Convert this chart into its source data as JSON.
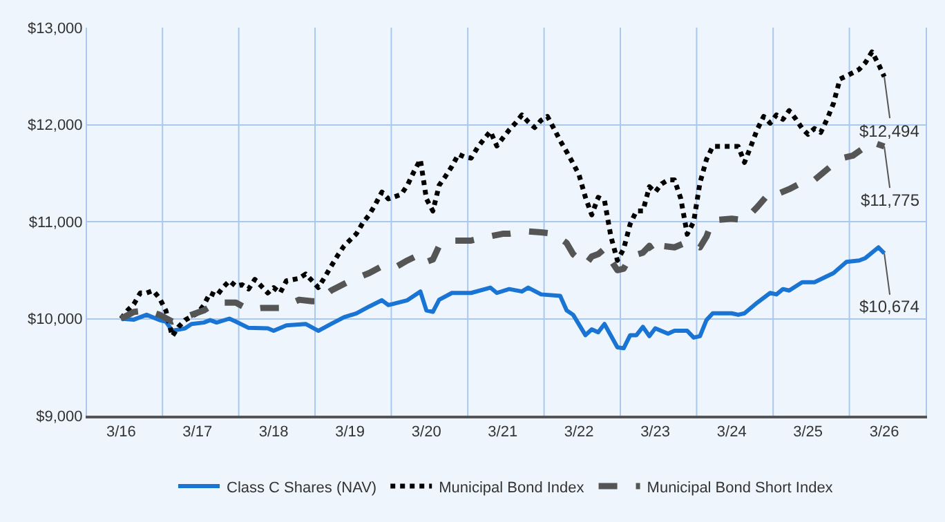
{
  "chart_data": {
    "type": "line",
    "xlim": [
      "2015-09-20",
      "2026-09-15"
    ],
    "ylim": [
      9000,
      13000
    ],
    "xticks": [
      {
        "value": "2016-03",
        "label": "3/16"
      },
      {
        "value": "2017-03",
        "label": "3/17"
      },
      {
        "value": "2018-03",
        "label": "3/18"
      },
      {
        "value": "2019-03",
        "label": "3/19"
      },
      {
        "value": "2020-03",
        "label": "3/20"
      },
      {
        "value": "2021-03",
        "label": "3/21"
      },
      {
        "value": "2022-03",
        "label": "3/22"
      },
      {
        "value": "2023-03",
        "label": "3/23"
      },
      {
        "value": "2024-03",
        "label": "3/24"
      },
      {
        "value": "2025-03",
        "label": "3/25"
      },
      {
        "value": "2026-03",
        "label": "3/26"
      },
      {
        "value": "2016-09-15",
        "label": null
      },
      {
        "value": "2017-09-15",
        "label": null
      },
      {
        "value": "2018-09-15",
        "label": null
      },
      {
        "value": "2019-09-15",
        "label": null
      },
      {
        "value": "2020-09-15",
        "label": null
      },
      {
        "value": "2021-09-15",
        "label": null
      },
      {
        "value": "2022-09-15",
        "label": null
      },
      {
        "value": "2023-09-15",
        "label": null
      },
      {
        "value": "2024-09-15",
        "label": null
      },
      {
        "value": "2025-09-15",
        "label": null
      }
    ],
    "yticks": [
      {
        "value": 9000,
        "label": "$9,000"
      },
      {
        "value": 10000,
        "label": "$10,000"
      },
      {
        "value": 11000,
        "label": "$11,000"
      },
      {
        "value": 12000,
        "label": "$12,000"
      },
      {
        "value": 13000,
        "label": "$13,000"
      }
    ],
    "grid": true,
    "legend": "bottom",
    "marker": "none",
    "annotations": [
      {
        "text": "$12,494",
        "x": "2026-03",
        "y": 12494
      },
      {
        "text": "$11,775",
        "x": "2026-03",
        "y": 11775
      },
      {
        "text": "$10,674",
        "x": "2026-03",
        "y": 10674
      }
    ],
    "series": [
      {
        "name": "Class C Shares (NAV)",
        "color": "#1a74d4",
        "line_style": "solid",
        "x": [
          "2016-03",
          "2016-05",
          "2016-07",
          "2016-09",
          "2016-10",
          "2016-11",
          "2017-01",
          "2017-02",
          "2017-04",
          "2017-05",
          "2017-06",
          "2017-08",
          "2017-09",
          "2017-11",
          "2018-02",
          "2018-03",
          "2018-05",
          "2018-08",
          "2018-10",
          "2018-12",
          "2019-02",
          "2019-04",
          "2019-06",
          "2019-08",
          "2019-09",
          "2019-12",
          "2020-02",
          "2020-03",
          "2020-04",
          "2020-05",
          "2020-07",
          "2020-10",
          "2021-01",
          "2021-02",
          "2021-04",
          "2021-06",
          "2021-07",
          "2021-09",
          "2021-12",
          "2022-01",
          "2022-02",
          "2022-04",
          "2022-05",
          "2022-06",
          "2022-07",
          "2022-09",
          "2022-10",
          "2022-11",
          "2022-12",
          "2023-01",
          "2023-02",
          "2023-03",
          "2023-05",
          "2023-06",
          "2023-08",
          "2023-09",
          "2023-10",
          "2023-11",
          "2023-12",
          "2024-03",
          "2024-04",
          "2024-05",
          "2024-07",
          "2024-09",
          "2024-10",
          "2024-11",
          "2024-12",
          "2025-02",
          "2025-04",
          "2025-07",
          "2025-09",
          "2025-11",
          "2025-12",
          "2026-02",
          "2026-03"
        ],
        "values": [
          10000,
          9990,
          10040,
          9985,
          9970,
          9875,
          9900,
          9945,
          9960,
          9985,
          9960,
          10000,
          9970,
          9905,
          9900,
          9875,
          9930,
          9945,
          9875,
          9945,
          10015,
          10055,
          10125,
          10190,
          10140,
          10190,
          10280,
          10085,
          10070,
          10195,
          10265,
          10265,
          10320,
          10265,
          10305,
          10280,
          10320,
          10250,
          10235,
          10085,
          10040,
          9830,
          9890,
          9860,
          9945,
          9705,
          9695,
          9830,
          9830,
          9915,
          9820,
          9900,
          9845,
          9875,
          9875,
          9805,
          9820,
          9985,
          10055,
          10055,
          10040,
          10055,
          10165,
          10265,
          10250,
          10305,
          10290,
          10375,
          10375,
          10470,
          10585,
          10600,
          10625,
          10735,
          10674
        ]
      },
      {
        "name": "Municipal Bond Index",
        "color": "#000000",
        "line_style": "dotted",
        "x": [
          "2016-03",
          "2016-04",
          "2016-05",
          "2016-06",
          "2016-07",
          "2016-08",
          "2016-09",
          "2016-10",
          "2016-11",
          "2016-12",
          "2017-01",
          "2017-03",
          "2017-04",
          "2017-05",
          "2017-06",
          "2017-07",
          "2017-08",
          "2017-09",
          "2017-10",
          "2017-11",
          "2017-12",
          "2018-01",
          "2018-02",
          "2018-03",
          "2018-04",
          "2018-05",
          "2018-07",
          "2018-08",
          "2018-09",
          "2018-10",
          "2018-11",
          "2018-12",
          "2019-01",
          "2019-02",
          "2019-04",
          "2019-05",
          "2019-06",
          "2019-07",
          "2019-08",
          "2019-09",
          "2019-11",
          "2019-12",
          "2020-01",
          "2020-02",
          "2020-03",
          "2020-04",
          "2020-05",
          "2020-06",
          "2020-07",
          "2020-08",
          "2020-09",
          "2020-10",
          "2020-11",
          "2020-12",
          "2021-01",
          "2021-02",
          "2021-03",
          "2021-04",
          "2021-05",
          "2021-06",
          "2021-07",
          "2021-08",
          "2021-09",
          "2021-10",
          "2021-11",
          "2021-12",
          "2022-01",
          "2022-02",
          "2022-03",
          "2022-04",
          "2022-05",
          "2022-06",
          "2022-07",
          "2022-08",
          "2022-09",
          "2022-10",
          "2022-11",
          "2022-12",
          "2023-01",
          "2023-02",
          "2023-03",
          "2023-04",
          "2023-05",
          "2023-06",
          "2023-07",
          "2023-08",
          "2023-09",
          "2023-10",
          "2023-11",
          "2023-12",
          "2024-02",
          "2024-04",
          "2024-05",
          "2024-06",
          "2024-07",
          "2024-08",
          "2024-09",
          "2024-10",
          "2024-11",
          "2024-12",
          "2025-01",
          "2025-02",
          "2025-03",
          "2025-04",
          "2025-05",
          "2025-06",
          "2025-07",
          "2025-08",
          "2025-09",
          "2025-11",
          "2025-12",
          "2026-01",
          "2026-02",
          "2026-03"
        ],
        "values": [
          10000,
          10085,
          10150,
          10265,
          10265,
          10290,
          10210,
          10085,
          9820,
          9915,
          9985,
          10055,
          10140,
          10265,
          10235,
          10320,
          10390,
          10335,
          10350,
          10305,
          10405,
          10335,
          10265,
          10320,
          10265,
          10390,
          10415,
          10460,
          10390,
          10320,
          10430,
          10540,
          10650,
          10750,
          10875,
          10985,
          11070,
          11180,
          11305,
          11235,
          11280,
          11375,
          11515,
          11640,
          11235,
          11110,
          11375,
          11470,
          11570,
          11695,
          11665,
          11655,
          11765,
          11850,
          11930,
          11780,
          11860,
          11945,
          12015,
          12100,
          12030,
          11970,
          12045,
          12085,
          11960,
          11835,
          11720,
          11600,
          11485,
          11250,
          11070,
          11250,
          11220,
          10845,
          10600,
          10720,
          10975,
          11110,
          11110,
          11360,
          11305,
          11390,
          11430,
          11430,
          11240,
          10870,
          11000,
          11400,
          11640,
          11775,
          11775,
          11775,
          11610,
          11780,
          11950,
          12085,
          12015,
          12100,
          12055,
          12145,
          12060,
          11960,
          11900,
          11960,
          11920,
          12060,
          12220,
          12470,
          12500,
          12570,
          12640,
          12750,
          12625,
          12494
        ]
      },
      {
        "name": "Municipal Bond Short Index",
        "color": "#555555",
        "line_style": "dashed",
        "x": [
          "2016-03",
          "2016-05",
          "2016-07",
          "2016-09",
          "2016-11",
          "2017-01",
          "2017-04",
          "2017-06",
          "2017-09",
          "2017-11",
          "2018-01",
          "2018-04",
          "2018-07",
          "2018-09",
          "2018-10",
          "2018-12",
          "2019-03",
          "2019-06",
          "2019-08",
          "2019-10",
          "2019-12",
          "2020-02",
          "2020-03",
          "2020-04",
          "2020-05",
          "2020-07",
          "2020-10",
          "2020-12",
          "2021-03",
          "2021-04",
          "2021-07",
          "2021-09",
          "2021-11",
          "2022-01",
          "2022-02",
          "2022-04",
          "2022-05",
          "2022-06",
          "2022-07",
          "2022-08",
          "2022-09",
          "2022-10",
          "2022-11",
          "2023-01",
          "2023-02",
          "2023-03",
          "2023-04",
          "2023-06",
          "2023-08",
          "2023-10",
          "2023-11",
          "2023-12",
          "2024-03",
          "2024-05",
          "2024-07",
          "2024-09",
          "2024-10",
          "2024-12",
          "2025-02",
          "2025-04",
          "2025-06",
          "2025-08",
          "2025-10",
          "2026-01",
          "2026-03"
        ],
        "values": [
          10000,
          10070,
          10085,
          10040,
          9970,
          10015,
          10085,
          10165,
          10165,
          10095,
          10110,
          10110,
          10195,
          10180,
          10180,
          10290,
          10390,
          10470,
          10540,
          10525,
          10600,
          10665,
          10585,
          10610,
          10750,
          10805,
          10805,
          10835,
          10875,
          10875,
          10900,
          10890,
          10875,
          10780,
          10665,
          10555,
          10640,
          10665,
          10720,
          10600,
          10500,
          10515,
          10640,
          10680,
          10750,
          10665,
          10750,
          10735,
          10790,
          10735,
          10845,
          11015,
          11030,
          11015,
          11150,
          11305,
          11280,
          11335,
          11405,
          11430,
          11540,
          11650,
          11680,
          11820,
          11775
        ]
      }
    ]
  }
}
